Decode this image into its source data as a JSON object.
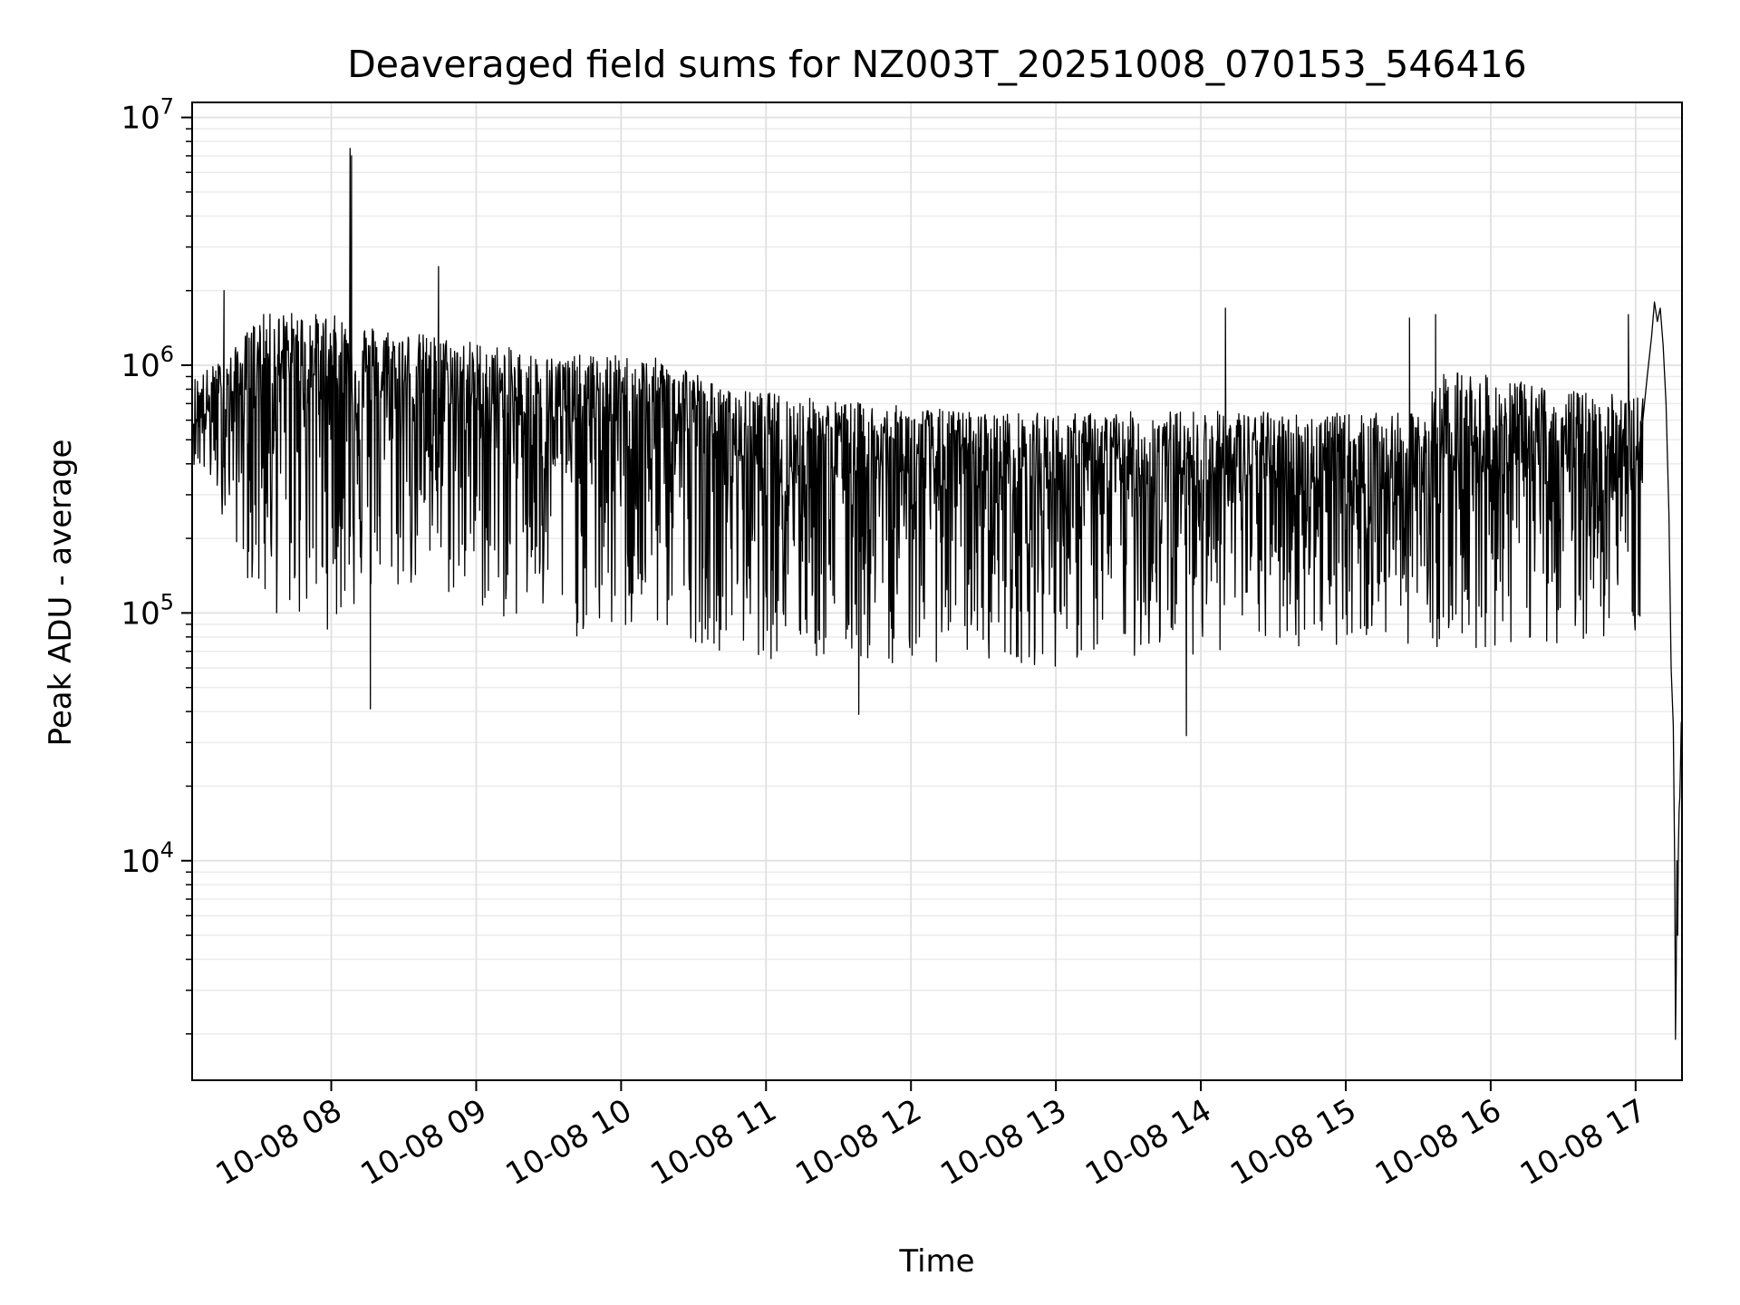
{
  "chart_data": {
    "type": "line",
    "title": "Deaveraged field sums for NZ003T_20251008_070153_546416",
    "xlabel": "Time",
    "ylabel": "Peak ADU - average",
    "yscale": "log",
    "xlim": [
      7.04,
      17.32
    ],
    "ylim": [
      1300,
      11500000
    ],
    "grid": true,
    "x_ticks": [
      {
        "value": 8,
        "label": "10-08 08"
      },
      {
        "value": 9,
        "label": "10-08 09"
      },
      {
        "value": 10,
        "label": "10-08 10"
      },
      {
        "value": 11,
        "label": "10-08 11"
      },
      {
        "value": 12,
        "label": "10-08 12"
      },
      {
        "value": 13,
        "label": "10-08 13"
      },
      {
        "value": 14,
        "label": "10-08 14"
      },
      {
        "value": 15,
        "label": "10-08 15"
      },
      {
        "value": 16,
        "label": "10-08 16"
      },
      {
        "value": 17,
        "label": "10-08 17"
      }
    ],
    "y_ticks": [
      {
        "value": 10000,
        "base": "10",
        "exp": "4"
      },
      {
        "value": 100000,
        "base": "10",
        "exp": "5"
      },
      {
        "value": 1000000,
        "base": "10",
        "exp": "6"
      },
      {
        "value": 10000000,
        "base": "10",
        "exp": "7"
      }
    ],
    "series": [
      {
        "name": "Peak ADU - average",
        "color": "#000000",
        "envelope": {
          "x": [
            7.05,
            7.3,
            7.5,
            7.7,
            8.0,
            8.3,
            8.6,
            9.0,
            9.5,
            10.0,
            10.4,
            10.7,
            11.0,
            11.5,
            12.0,
            12.5,
            13.0,
            13.5,
            14.0,
            14.5,
            15.0,
            15.5,
            15.7,
            16.0,
            16.5,
            17.0,
            17.05
          ],
          "median": [
            620000,
            700000,
            900000,
            950000,
            900000,
            800000,
            750000,
            700000,
            620000,
            600000,
            580000,
            480000,
            420000,
            400000,
            380000,
            360000,
            350000,
            360000,
            370000,
            360000,
            340000,
            330000,
            450000,
            420000,
            400000,
            380000,
            420000
          ],
          "high": [
            900000,
            1100000,
            1600000,
            1650000,
            1600000,
            1450000,
            1350000,
            1250000,
            1100000,
            1100000,
            1050000,
            800000,
            780000,
            720000,
            680000,
            650000,
            640000,
            650000,
            660000,
            650000,
            640000,
            640000,
            1000000,
            900000,
            800000,
            750000,
            800000
          ],
          "low": [
            400000,
            220000,
            100000,
            90000,
            85000,
            110000,
            120000,
            100000,
            80000,
            75000,
            80000,
            70000,
            65000,
            60000,
            62000,
            65000,
            60000,
            65000,
            68000,
            70000,
            75000,
            75000,
            70000,
            70000,
            75000,
            80000,
            90000
          ]
        },
        "features": [
          {
            "x": 8.13,
            "y": 7500000
          },
          {
            "x": 8.14,
            "y": 7000000
          },
          {
            "x": 8.74,
            "y": 2500000
          },
          {
            "x": 7.26,
            "y": 2000000
          },
          {
            "x": 14.17,
            "y": 1700000
          },
          {
            "x": 15.44,
            "y": 1550000
          },
          {
            "x": 15.62,
            "y": 1600000
          },
          {
            "x": 16.95,
            "y": 1600000
          },
          {
            "x": 13.9,
            "y": 32000
          },
          {
            "x": 11.64,
            "y": 39000
          },
          {
            "x": 8.27,
            "y": 41000
          }
        ],
        "tail": {
          "x": [
            17.02,
            17.05,
            17.08,
            17.11,
            17.13,
            17.15,
            17.17,
            17.19,
            17.21,
            17.23,
            17.245,
            17.26,
            17.27,
            17.275,
            17.28,
            17.285,
            17.29,
            17.295,
            17.3,
            17.305,
            17.31,
            17.315,
            17.32
          ],
          "y": [
            400000,
            600000,
            900000,
            1300000,
            1800000,
            1500000,
            1700000,
            1200000,
            700000,
            250000,
            60000,
            35000,
            9000,
            1900,
            3500,
            10000,
            5000,
            11000,
            16000,
            18000,
            25000,
            36000,
            37000
          ]
        },
        "samples": 3000
      }
    ]
  }
}
